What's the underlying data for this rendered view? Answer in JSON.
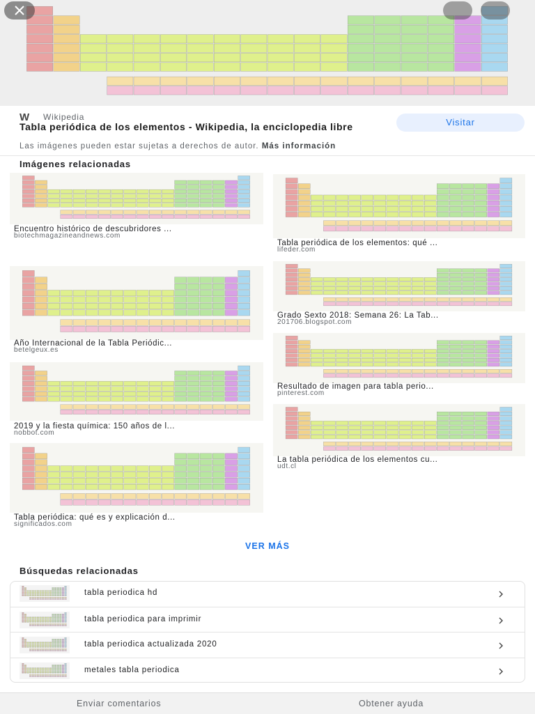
{
  "source": {
    "site": "Wikipedia",
    "title": "Tabla periódica de los elementos - Wikipedia, la enciclopedia libre",
    "visit": "Visitar",
    "notice": "Las imágenes pueden estar sujetas a derechos de autor.",
    "more_info": "Más información"
  },
  "related_images": {
    "heading": "Imágenes relacionadas",
    "items": [
      {
        "title": "Encuentro histórico de descubridores ...",
        "domain": "biotechmagazineandnews.com"
      },
      {
        "title": "Tabla periódica de los elementos: qué ...",
        "domain": "lifeder.com"
      },
      {
        "title": "Año Internacional de la Tabla Periódic...",
        "domain": "betelgeux.es"
      },
      {
        "title": "Grado Sexto 2018: Semana 26: La Tab...",
        "domain": "201706.blogspot.com"
      },
      {
        "title": "Resultado de imagen para tabla perio...",
        "domain": "pinterest.com"
      },
      {
        "title": "2019 y la fiesta química: 150 años de l...",
        "domain": "nobbot.com"
      },
      {
        "title": "La tabla periódica de los elementos cu...",
        "domain": "udt.cl"
      },
      {
        "title": "Tabla periódica: qué es y explicación d...",
        "domain": "significados.com"
      }
    ]
  },
  "see_more": "VER MÁS",
  "related_searches": {
    "heading": "Búsquedas relacionadas",
    "items": [
      "tabla periodica hd",
      "tabla periodica para imprimir",
      "tabla periodica actualizada 2020",
      "metales tabla periodica"
    ]
  },
  "footer": {
    "feedback": "Enviar comentarios",
    "help": "Obtener ayuda"
  }
}
